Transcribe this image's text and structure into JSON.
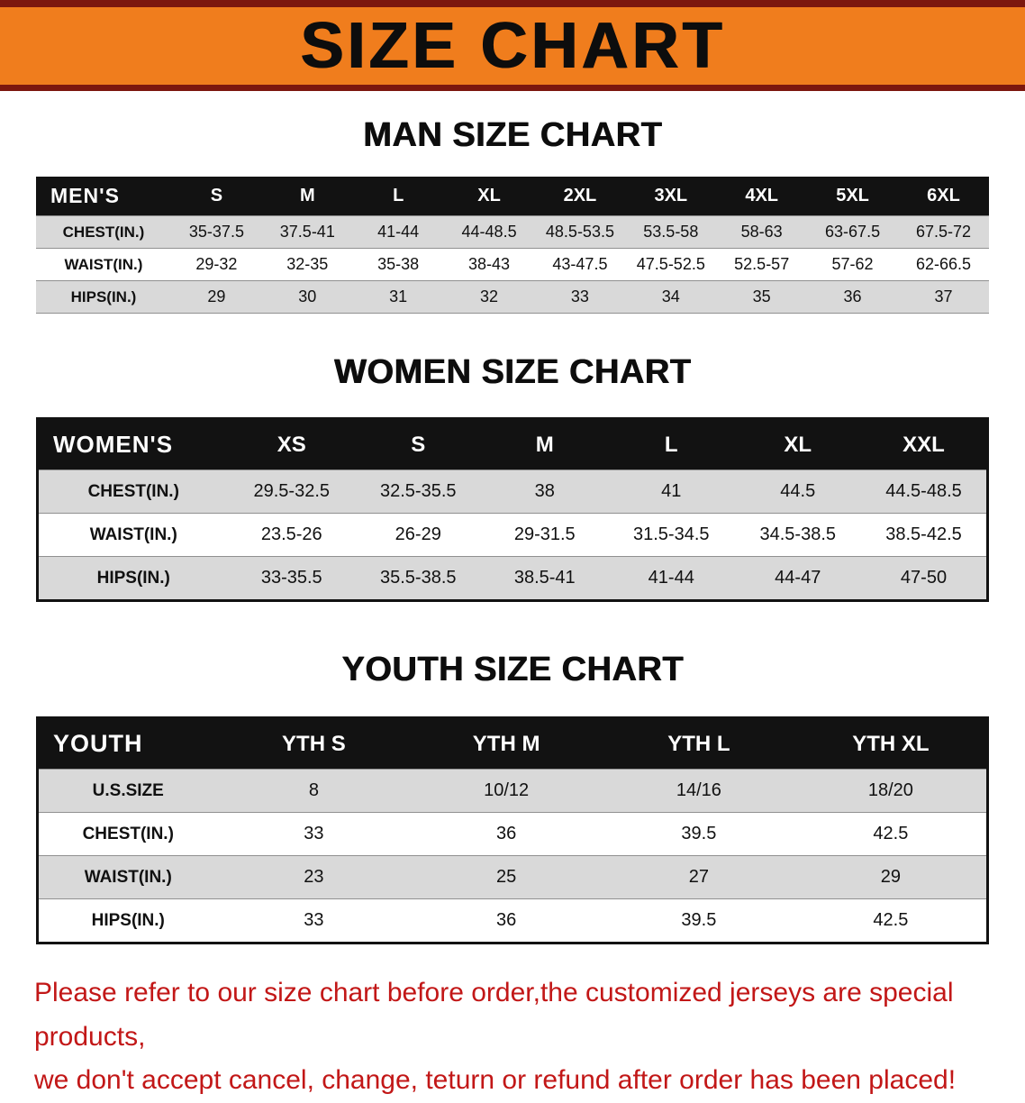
{
  "banner": {
    "title": "SIZE CHART"
  },
  "colors": {
    "banner_bg": "#f07d1d",
    "banner_edge": "#7c170e",
    "table_header_bg": "#121212",
    "row_alt": "#d9d9d9",
    "footer_text": "#c21717"
  },
  "men": {
    "heading": "MAN SIZE CHART",
    "table": {
      "header": [
        "MEN'S",
        "S",
        "M",
        "L",
        "XL",
        "2XL",
        "3XL",
        "4XL",
        "5XL",
        "6XL"
      ],
      "rows": [
        [
          "CHEST(IN.)",
          "35-37.5",
          "37.5-41",
          "41-44",
          "44-48.5",
          "48.5-53.5",
          "53.5-58",
          "58-63",
          "63-67.5",
          "67.5-72"
        ],
        [
          "WAIST(IN.)",
          "29-32",
          "32-35",
          "35-38",
          "38-43",
          "43-47.5",
          "47.5-52.5",
          "52.5-57",
          "57-62",
          "62-66.5"
        ],
        [
          "HIPS(IN.)",
          "29",
          "30",
          "31",
          "32",
          "33",
          "34",
          "35",
          "36",
          "37"
        ]
      ]
    }
  },
  "women": {
    "heading": "WOMEN SIZE CHART",
    "table": {
      "header": [
        "WOMEN'S",
        "XS",
        "S",
        "M",
        "L",
        "XL",
        "XXL"
      ],
      "rows": [
        [
          "CHEST(IN.)",
          "29.5-32.5",
          "32.5-35.5",
          "38",
          "41",
          "44.5",
          "44.5-48.5"
        ],
        [
          "WAIST(IN.)",
          "23.5-26",
          "26-29",
          "29-31.5",
          "31.5-34.5",
          "34.5-38.5",
          "38.5-42.5"
        ],
        [
          "HIPS(IN.)",
          "33-35.5",
          "35.5-38.5",
          "38.5-41",
          "41-44",
          "44-47",
          "47-50"
        ]
      ]
    }
  },
  "youth": {
    "heading": "YOUTH SIZE CHART",
    "table": {
      "header": [
        "YOUTH",
        "YTH S",
        "YTH M",
        "YTH L",
        "YTH XL"
      ],
      "rows": [
        [
          "U.S.SIZE",
          "8",
          "10/12",
          "14/16",
          "18/20"
        ],
        [
          "CHEST(IN.)",
          "33",
          "36",
          "39.5",
          "42.5"
        ],
        [
          "WAIST(IN.)",
          "23",
          "25",
          "27",
          "29"
        ],
        [
          "HIPS(IN.)",
          "33",
          "36",
          "39.5",
          "42.5"
        ]
      ]
    }
  },
  "footer": {
    "line1": "Please refer to our size chart before order,the customized jerseys are special products,",
    "line2": "we don't accept cancel, change, teturn or refund after order has been placed!"
  }
}
